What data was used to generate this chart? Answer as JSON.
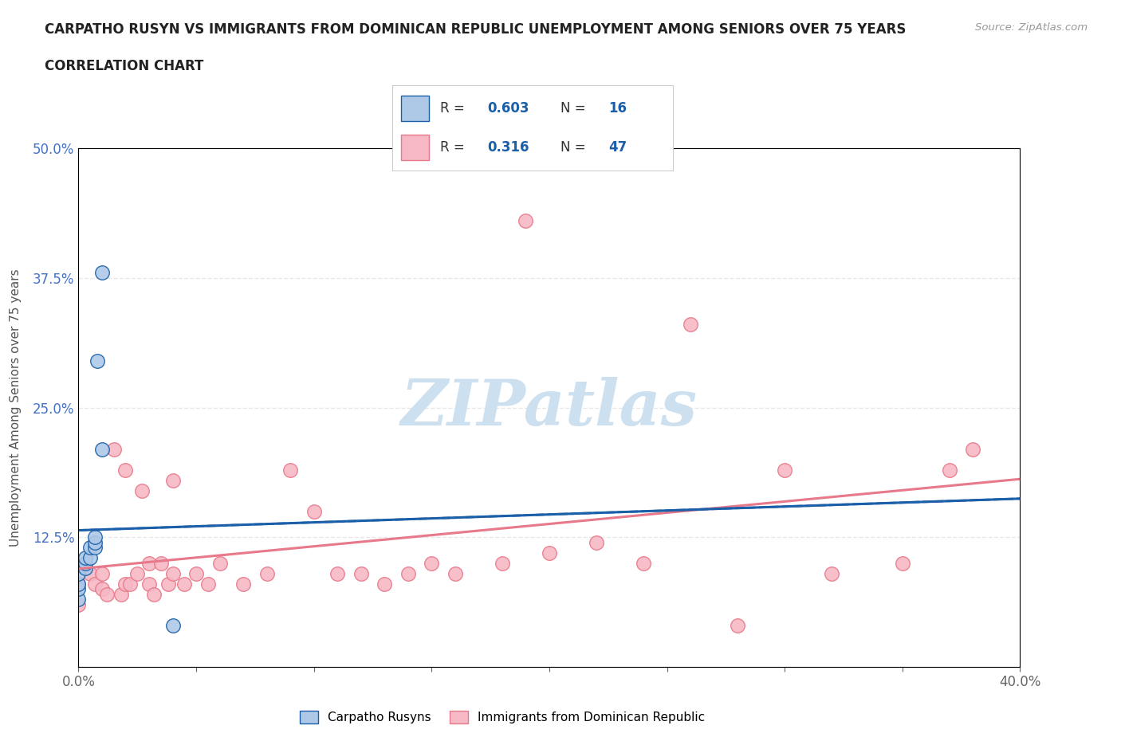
{
  "title_line1": "CARPATHO RUSYN VS IMMIGRANTS FROM DOMINICAN REPUBLIC UNEMPLOYMENT AMONG SENIORS OVER 75 YEARS",
  "title_line2": "CORRELATION CHART",
  "source_text": "Source: ZipAtlas.com",
  "ylabel": "Unemployment Among Seniors over 75 years",
  "xlim": [
    0.0,
    0.4
  ],
  "ylim": [
    0.0,
    0.5
  ],
  "xticks": [
    0.0,
    0.05,
    0.1,
    0.15,
    0.2,
    0.25,
    0.3,
    0.35,
    0.4
  ],
  "yticks": [
    0.0,
    0.125,
    0.25,
    0.375,
    0.5
  ],
  "ytick_labels": [
    "",
    "12.5%",
    "25.0%",
    "37.5%",
    "50.0%"
  ],
  "xtick_labels": [
    "0.0%",
    "",
    "",
    "",
    "",
    "",
    "",
    "",
    "40.0%"
  ],
  "blue_color": "#aec9e8",
  "pink_color": "#f5b8c4",
  "blue_line_color": "#1a5fa8",
  "pink_line_color": "#e8798a",
  "R_blue": 0.603,
  "N_blue": 16,
  "R_pink": 0.316,
  "N_pink": 47,
  "blue_scatter_x": [
    0.0,
    0.0,
    0.0,
    0.0,
    0.003,
    0.003,
    0.003,
    0.005,
    0.005,
    0.007,
    0.007,
    0.007,
    0.008,
    0.01,
    0.01,
    0.04
  ],
  "blue_scatter_y": [
    0.065,
    0.075,
    0.08,
    0.09,
    0.095,
    0.1,
    0.105,
    0.105,
    0.115,
    0.115,
    0.12,
    0.125,
    0.295,
    0.38,
    0.21,
    0.04
  ],
  "pink_scatter_x": [
    0.0,
    0.0,
    0.005,
    0.007,
    0.01,
    0.01,
    0.012,
    0.015,
    0.018,
    0.02,
    0.02,
    0.022,
    0.025,
    0.027,
    0.03,
    0.03,
    0.032,
    0.035,
    0.038,
    0.04,
    0.04,
    0.045,
    0.05,
    0.055,
    0.06,
    0.07,
    0.08,
    0.09,
    0.1,
    0.11,
    0.12,
    0.13,
    0.14,
    0.15,
    0.16,
    0.18,
    0.19,
    0.2,
    0.22,
    0.24,
    0.26,
    0.28,
    0.3,
    0.32,
    0.35,
    0.37,
    0.38
  ],
  "pink_scatter_y": [
    0.06,
    0.08,
    0.09,
    0.08,
    0.075,
    0.09,
    0.07,
    0.21,
    0.07,
    0.08,
    0.19,
    0.08,
    0.09,
    0.17,
    0.08,
    0.1,
    0.07,
    0.1,
    0.08,
    0.09,
    0.18,
    0.08,
    0.09,
    0.08,
    0.1,
    0.08,
    0.09,
    0.19,
    0.15,
    0.09,
    0.09,
    0.08,
    0.09,
    0.1,
    0.09,
    0.1,
    0.43,
    0.11,
    0.12,
    0.1,
    0.33,
    0.04,
    0.19,
    0.09,
    0.1,
    0.19,
    0.21
  ],
  "watermark_text": "ZIPatlas",
  "watermark_color": "#cce0f0",
  "background_color": "#ffffff",
  "grid_color": "#e8e8e8",
  "grid_style": "--"
}
